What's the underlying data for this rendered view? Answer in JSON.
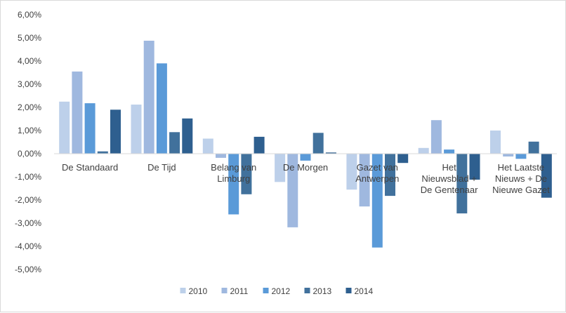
{
  "chart_data": {
    "type": "bar",
    "title": "",
    "xlabel": "",
    "ylabel": "",
    "ylim": [
      -0.05,
      0.06
    ],
    "yticks": [
      0.06,
      0.05,
      0.04,
      0.03,
      0.02,
      0.01,
      0.0,
      -0.01,
      -0.02,
      -0.03,
      -0.04,
      -0.05
    ],
    "ytick_labels": [
      "6,00%",
      "5,00%",
      "4,00%",
      "3,00%",
      "2,00%",
      "1,00%",
      "0,00%",
      "-1,00%",
      "-2,00%",
      "-3,00%",
      "-4,00%",
      "-5,00%"
    ],
    "categories": [
      [
        "De Standaard"
      ],
      [
        "De Tijd"
      ],
      [
        "Belang van",
        "Limburg"
      ],
      [
        "De Morgen"
      ],
      [
        "Gazet van",
        "Antwerpen"
      ],
      [
        "Het",
        "Nieuwsblad +",
        "De Gentenaar"
      ],
      [
        "Het Laatste",
        "Nieuws + De",
        "Nieuwe Gazet"
      ]
    ],
    "series": [
      {
        "name": "2010",
        "color": "#bdd0ea",
        "values": [
          0.0225,
          0.0212,
          0.0065,
          -0.0122,
          -0.0155,
          0.0025,
          0.01
        ]
      },
      {
        "name": "2011",
        "color": "#9fb8df",
        "values": [
          0.0355,
          0.0488,
          -0.0018,
          -0.0318,
          -0.0228,
          0.0145,
          -0.0012
        ]
      },
      {
        "name": "2012",
        "color": "#5a9ad8",
        "values": [
          0.0218,
          0.039,
          -0.0262,
          -0.003,
          -0.0405,
          0.0018,
          -0.0022
        ]
      },
      {
        "name": "2013",
        "color": "#41719c",
        "values": [
          0.001,
          0.0093,
          -0.0175,
          0.009,
          -0.0182,
          -0.0258,
          0.0052
        ]
      },
      {
        "name": "2014",
        "color": "#2e5f8f",
        "values": [
          0.019,
          0.0152,
          0.0073,
          0.0005,
          -0.004,
          -0.0112,
          -0.019
        ]
      }
    ],
    "legend": "bottom",
    "grid": false
  }
}
